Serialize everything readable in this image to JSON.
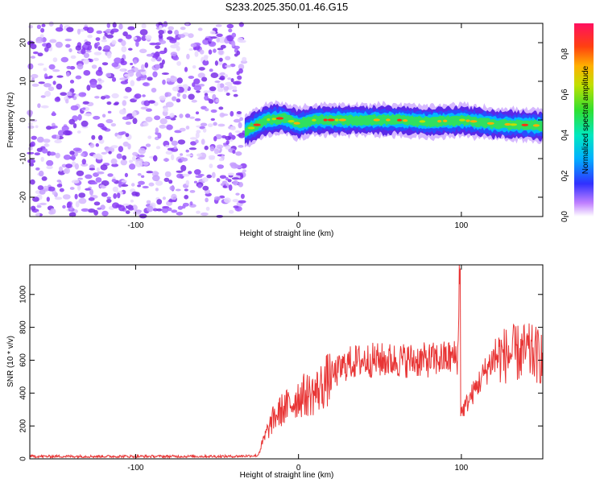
{
  "title": "S233.2025.350.01.46.G15",
  "chart_data": [
    {
      "type": "heatmap",
      "xlabel": "Height of straight line (km)",
      "ylabel": "Frequency (Hz)",
      "xlim": [
        -165,
        150
      ],
      "ylim": [
        -25,
        25
      ],
      "x_ticks": [
        -100,
        0,
        100
      ],
      "y_ticks": [
        -20,
        -10,
        0,
        10,
        20
      ],
      "colorbar": {
        "label": "Normalized spectral amplitude",
        "range": [
          0,
          0.95
        ],
        "ticks": [
          0.0,
          0.2,
          0.4,
          0.6,
          0.8
        ]
      },
      "noise_region_x": [
        -165,
        -33
      ],
      "signal_onset_x": -33,
      "signal_band": {
        "x": [
          -33,
          -20,
          -10,
          0,
          10,
          20,
          40,
          60,
          80,
          100,
          120,
          150
        ],
        "freq": [
          -3,
          0,
          0.5,
          -1,
          0,
          0,
          0,
          0,
          -0.5,
          0,
          -1,
          -1.5
        ]
      }
    },
    {
      "type": "line",
      "xlabel": "Height of straight line (km)",
      "ylabel": "SNR (10 * v/v)",
      "xlim": [
        -165,
        150
      ],
      "ylim": [
        0,
        1180
      ],
      "x_ticks": [
        -100,
        0,
        100
      ],
      "y_ticks": [
        0,
        200,
        400,
        600,
        800,
        1000
      ],
      "series": [
        {
          "color": "#e83535",
          "x": [
            -165,
            -120,
            -80,
            -40,
            -25,
            -20,
            -15,
            -10,
            -5,
            0,
            10,
            20,
            30,
            40,
            60,
            80,
            98,
            99,
            100,
            120,
            140,
            150
          ],
          "y": [
            15,
            15,
            15,
            15,
            20,
            150,
            250,
            300,
            330,
            380,
            400,
            500,
            580,
            600,
            600,
            600,
            620,
            1180,
            280,
            620,
            650,
            620
          ]
        }
      ]
    }
  ]
}
